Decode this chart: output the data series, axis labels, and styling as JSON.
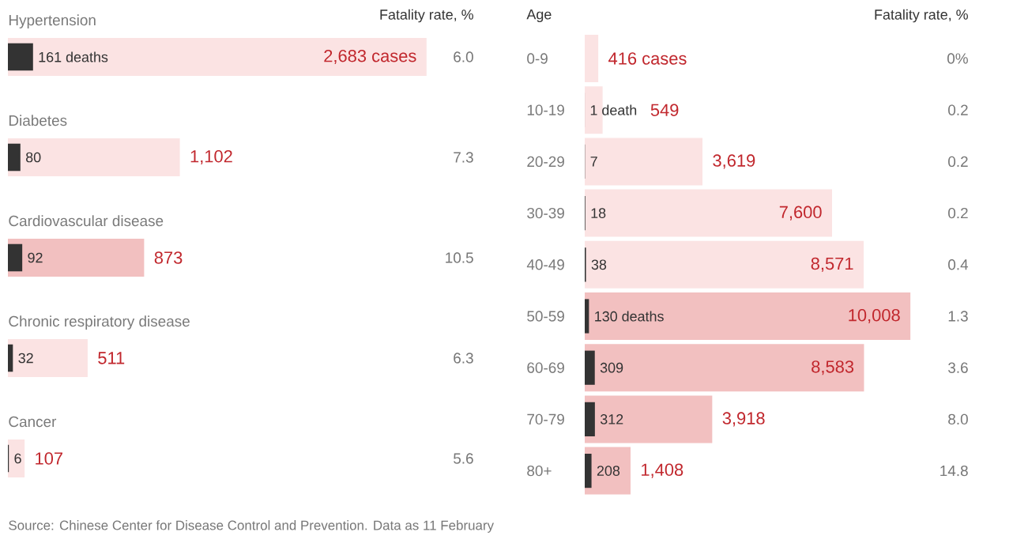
{
  "chart_data": [
    {
      "type": "bar",
      "orientation": "horizontal",
      "categories": [
        "Hypertension",
        "Diabetes",
        "Cardiovascular disease",
        "Chronic respiratory disease",
        "Cancer"
      ],
      "series": [
        {
          "color": "#333333",
          "values": [
            161,
            80,
            92,
            32,
            6
          ],
          "value_labels": [
            "161 deaths",
            "80",
            "92",
            "32",
            "6"
          ]
        },
        {
          "colors": [
            "#fbe3e3",
            "#fbe3e3",
            "#f2c0c0",
            "#fbe3e3",
            "#fbe3e3"
          ],
          "values": [
            2683,
            1102,
            873,
            511,
            107
          ],
          "value_labels": [
            "2,683 cases",
            "1,102",
            "873",
            "511",
            "107"
          ]
        }
      ],
      "annotations": [
        "Fatality rate, %",
        "6.0",
        "7.3",
        "10.5",
        "6.3",
        "5.6",
        "Source: Chinese Center for Disease Control and Prevention. Data as 11 February"
      ]
    },
    {
      "type": "bar",
      "orientation": "horizontal",
      "ylabel": "Age",
      "categories": [
        "0-9",
        "10-19",
        "20-29",
        "30-39",
        "40-49",
        "50-59",
        "60-69",
        "70-79",
        "80+"
      ],
      "series": [
        {
          "color": "#333333",
          "values": [
            0,
            1,
            7,
            18,
            38,
            130,
            309,
            312,
            208
          ],
          "value_labels": [
            null,
            "1 death",
            "7",
            "18",
            "38",
            "130 deaths",
            "309",
            "312",
            "208"
          ]
        },
        {
          "colors": [
            "#fbe3e3",
            "#fbe3e3",
            "#fbe3e3",
            "#fbe3e3",
            "#fbe3e3",
            "#f2c0c0",
            "#f2c0c0",
            "#f2c0c0",
            "#f2c0c0"
          ],
          "values": [
            416,
            549,
            3619,
            7600,
            8571,
            10008,
            8583,
            3918,
            1408
          ],
          "value_labels": [
            "416 cases",
            "549",
            "3,619",
            "7,600",
            "8,571",
            "10,008",
            "8,583",
            "3,918",
            "1,408"
          ]
        }
      ],
      "annotations": [
        "Fatality rate, %",
        "0%",
        "0.2",
        "0.2",
        "0.2",
        "0.4",
        "1.3",
        "3.6",
        "8.0",
        "14.8"
      ]
    }
  ]
}
